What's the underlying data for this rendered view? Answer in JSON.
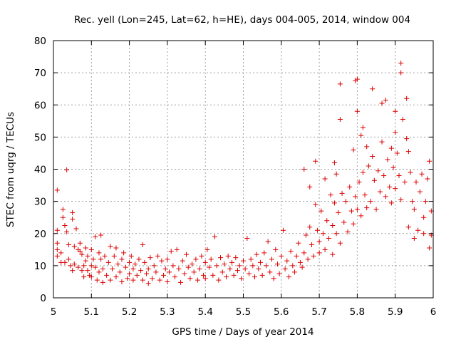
{
  "chart_data": {
    "type": "scatter",
    "title": "Rec. yell (Lon=245, Lat=62, h=HE), days 004-005, 2014, window 004",
    "xlabel": "GPS time / Days of year 2014",
    "ylabel": "STEC from uqrg / TECUs",
    "xlim": [
      5,
      6
    ],
    "ylim": [
      0,
      80
    ],
    "xticks": [
      5,
      5.1,
      5.2,
      5.3,
      5.4,
      5.5,
      5.6,
      5.7,
      5.8,
      5.9,
      6
    ],
    "xtick_labels": [
      "5",
      "5.1",
      "5.2",
      "5.3",
      "5.4",
      "5.5",
      "5.6",
      "5.7",
      "5.8",
      "5.9",
      "6"
    ],
    "yticks": [
      0,
      10,
      20,
      30,
      40,
      50,
      60,
      70,
      80
    ],
    "ytick_labels": [
      "0",
      "10",
      "20",
      "30",
      "40",
      "50",
      "60",
      "70",
      "80"
    ],
    "grid": true,
    "marker": "+",
    "color": "#dd0000",
    "series": [
      {
        "name": "STEC",
        "points": [
          [
            5.01,
            33.5
          ],
          [
            5.01,
            21
          ],
          [
            5.01,
            17
          ],
          [
            5.01,
            15
          ],
          [
            5.01,
            13
          ],
          [
            5.02,
            14
          ],
          [
            5.02,
            11
          ],
          [
            5.025,
            27.5
          ],
          [
            5.025,
            25
          ],
          [
            5.03,
            22.5
          ],
          [
            5.03,
            11
          ],
          [
            5.035,
            39.8
          ],
          [
            5.035,
            20.5
          ],
          [
            5.04,
            12
          ],
          [
            5.04,
            16.5
          ],
          [
            5.045,
            10
          ],
          [
            5.05,
            26.5
          ],
          [
            5.05,
            24.5
          ],
          [
            5.05,
            8.5
          ],
          [
            5.055,
            16
          ],
          [
            5.055,
            10.5
          ],
          [
            5.06,
            21.5
          ],
          [
            5.065,
            15
          ],
          [
            5.065,
            9.5
          ],
          [
            5.07,
            17
          ],
          [
            5.07,
            14.5
          ],
          [
            5.075,
            13.5
          ],
          [
            5.075,
            8.5
          ],
          [
            5.08,
            10
          ],
          [
            5.08,
            6.5
          ],
          [
            5.085,
            15.5
          ],
          [
            5.085,
            11.5
          ],
          [
            5.09,
            13
          ],
          [
            5.09,
            8.5
          ],
          [
            5.095,
            7
          ],
          [
            5.1,
            15
          ],
          [
            5.1,
            10
          ],
          [
            5.1,
            6.5
          ],
          [
            5.105,
            12
          ],
          [
            5.11,
            19
          ],
          [
            5.11,
            9.5
          ],
          [
            5.115,
            5.5
          ],
          [
            5.12,
            14
          ],
          [
            5.12,
            8
          ],
          [
            5.125,
            19.5
          ],
          [
            5.125,
            12
          ],
          [
            5.13,
            9
          ],
          [
            5.13,
            4.8
          ],
          [
            5.135,
            13
          ],
          [
            5.14,
            7
          ],
          [
            5.145,
            11
          ],
          [
            5.15,
            16
          ],
          [
            5.15,
            5.5
          ],
          [
            5.155,
            9
          ],
          [
            5.16,
            13
          ],
          [
            5.165,
            15.5
          ],
          [
            5.165,
            6.5
          ],
          [
            5.17,
            10.5
          ],
          [
            5.175,
            8
          ],
          [
            5.18,
            12
          ],
          [
            5.18,
            5
          ],
          [
            5.185,
            14
          ],
          [
            5.19,
            9.5
          ],
          [
            5.195,
            6
          ],
          [
            5.2,
            11
          ],
          [
            5.2,
            7.5
          ],
          [
            5.205,
            13
          ],
          [
            5.21,
            9
          ],
          [
            5.21,
            5.5
          ],
          [
            5.215,
            10.5
          ],
          [
            5.22,
            7
          ],
          [
            5.225,
            12
          ],
          [
            5.23,
            8.5
          ],
          [
            5.235,
            16.5
          ],
          [
            5.235,
            5.5
          ],
          [
            5.24,
            11
          ],
          [
            5.245,
            7.5
          ],
          [
            5.25,
            9
          ],
          [
            5.25,
            4.5
          ],
          [
            5.255,
            12.5
          ],
          [
            5.26,
            6
          ],
          [
            5.265,
            10
          ],
          [
            5.27,
            8
          ],
          [
            5.275,
            13
          ],
          [
            5.28,
            5.5
          ],
          [
            5.285,
            11.5
          ],
          [
            5.29,
            7
          ],
          [
            5.295,
            9
          ],
          [
            5.3,
            12
          ],
          [
            5.3,
            5
          ],
          [
            5.305,
            8
          ],
          [
            5.31,
            14.5
          ],
          [
            5.315,
            10
          ],
          [
            5.32,
            6.5
          ],
          [
            5.325,
            15
          ],
          [
            5.33,
            9
          ],
          [
            5.335,
            4.8
          ],
          [
            5.34,
            11.5
          ],
          [
            5.345,
            7.5
          ],
          [
            5.35,
            13.5
          ],
          [
            5.355,
            9.5
          ],
          [
            5.36,
            6
          ],
          [
            5.365,
            10.5
          ],
          [
            5.37,
            8
          ],
          [
            5.375,
            12
          ],
          [
            5.38,
            5.5
          ],
          [
            5.385,
            9
          ],
          [
            5.39,
            13
          ],
          [
            5.395,
            7
          ],
          [
            5.4,
            11
          ],
          [
            5.4,
            6
          ],
          [
            5.405,
            15
          ],
          [
            5.41,
            9.5
          ],
          [
            5.415,
            12
          ],
          [
            5.42,
            7
          ],
          [
            5.425,
            19
          ],
          [
            5.43,
            10
          ],
          [
            5.435,
            5.5
          ],
          [
            5.44,
            12.5
          ],
          [
            5.445,
            8
          ],
          [
            5.45,
            10.5
          ],
          [
            5.455,
            6.5
          ],
          [
            5.46,
            13
          ],
          [
            5.465,
            9
          ],
          [
            5.47,
            11
          ],
          [
            5.475,
            7
          ],
          [
            5.48,
            12.5
          ],
          [
            5.485,
            8.5
          ],
          [
            5.49,
            10
          ],
          [
            5.495,
            6
          ],
          [
            5.5,
            11.5
          ],
          [
            5.505,
            9
          ],
          [
            5.51,
            18.5
          ],
          [
            5.515,
            7.5
          ],
          [
            5.52,
            12
          ],
          [
            5.525,
            10
          ],
          [
            5.53,
            6.5
          ],
          [
            5.535,
            13.5
          ],
          [
            5.54,
            9
          ],
          [
            5.545,
            11
          ],
          [
            5.55,
            7
          ],
          [
            5.555,
            14
          ],
          [
            5.56,
            10
          ],
          [
            5.565,
            17.5
          ],
          [
            5.57,
            8
          ],
          [
            5.575,
            12
          ],
          [
            5.58,
            6
          ],
          [
            5.585,
            15
          ],
          [
            5.59,
            10.5
          ],
          [
            5.595,
            7.5
          ],
          [
            5.6,
            13
          ],
          [
            5.605,
            21
          ],
          [
            5.61,
            9
          ],
          [
            5.615,
            11.5
          ],
          [
            5.62,
            6.5
          ],
          [
            5.625,
            14.5
          ],
          [
            5.63,
            10
          ],
          [
            5.635,
            8
          ],
          [
            5.64,
            13
          ],
          [
            5.645,
            17
          ],
          [
            5.65,
            11
          ],
          [
            5.655,
            9.5
          ],
          [
            5.66,
            40
          ],
          [
            5.66,
            14
          ],
          [
            5.665,
            19.5
          ],
          [
            5.67,
            12
          ],
          [
            5.675,
            34.5
          ],
          [
            5.675,
            22
          ],
          [
            5.68,
            16.5
          ],
          [
            5.685,
            13
          ],
          [
            5.69,
            42.5
          ],
          [
            5.69,
            29
          ],
          [
            5.695,
            21
          ],
          [
            5.7,
            17.5
          ],
          [
            5.7,
            14
          ],
          [
            5.705,
            27
          ],
          [
            5.71,
            20
          ],
          [
            5.715,
            37
          ],
          [
            5.715,
            15
          ],
          [
            5.72,
            24
          ],
          [
            5.725,
            18.5
          ],
          [
            5.73,
            32
          ],
          [
            5.735,
            22.5
          ],
          [
            5.735,
            13.5
          ],
          [
            5.74,
            42
          ],
          [
            5.74,
            29.5
          ],
          [
            5.745,
            38.5
          ],
          [
            5.745,
            20
          ],
          [
            5.75,
            26.5
          ],
          [
            5.755,
            66.5
          ],
          [
            5.755,
            55.5
          ],
          [
            5.755,
            17
          ],
          [
            5.76,
            32.5
          ],
          [
            5.765,
            23.5
          ],
          [
            5.77,
            30
          ],
          [
            5.775,
            20.5
          ],
          [
            5.78,
            34.5
          ],
          [
            5.785,
            27
          ],
          [
            5.79,
            46
          ],
          [
            5.79,
            23
          ],
          [
            5.795,
            67.5
          ],
          [
            5.795,
            31.5
          ],
          [
            5.8,
            68
          ],
          [
            5.8,
            58
          ],
          [
            5.8,
            27.5
          ],
          [
            5.805,
            36
          ],
          [
            5.81,
            50.5
          ],
          [
            5.81,
            25.5
          ],
          [
            5.815,
            53
          ],
          [
            5.815,
            39
          ],
          [
            5.82,
            32
          ],
          [
            5.825,
            47
          ],
          [
            5.825,
            28
          ],
          [
            5.83,
            41
          ],
          [
            5.835,
            30
          ],
          [
            5.84,
            65
          ],
          [
            5.84,
            44
          ],
          [
            5.845,
            36.5
          ],
          [
            5.85,
            27.5
          ],
          [
            5.855,
            39.5
          ],
          [
            5.86,
            33
          ],
          [
            5.865,
            60.5
          ],
          [
            5.865,
            48.5
          ],
          [
            5.87,
            38
          ],
          [
            5.875,
            61.5
          ],
          [
            5.875,
            31.5
          ],
          [
            5.88,
            43
          ],
          [
            5.885,
            34.5
          ],
          [
            5.89,
            46.5
          ],
          [
            5.89,
            29.5
          ],
          [
            5.895,
            40.5
          ],
          [
            5.9,
            58
          ],
          [
            5.9,
            51.5
          ],
          [
            5.9,
            34
          ],
          [
            5.905,
            45
          ],
          [
            5.91,
            38
          ],
          [
            5.915,
            73
          ],
          [
            5.915,
            70
          ],
          [
            5.915,
            30.5
          ],
          [
            5.92,
            55.5
          ],
          [
            5.925,
            36
          ],
          [
            5.93,
            62
          ],
          [
            5.93,
            49.5
          ],
          [
            5.935,
            45.5
          ],
          [
            5.935,
            22
          ],
          [
            5.94,
            39
          ],
          [
            5.945,
            30
          ],
          [
            5.95,
            18.5
          ],
          [
            5.95,
            27.5
          ],
          [
            5.955,
            36
          ],
          [
            5.96,
            21
          ],
          [
            5.965,
            33
          ],
          [
            5.97,
            38.5
          ],
          [
            5.975,
            25
          ],
          [
            5.975,
            20
          ],
          [
            5.98,
            30
          ],
          [
            5.985,
            37
          ],
          [
            5.99,
            42.5
          ],
          [
            5.99,
            15.5
          ],
          [
            5.995,
            27
          ],
          [
            5.995,
            19.5
          ]
        ]
      }
    ]
  }
}
